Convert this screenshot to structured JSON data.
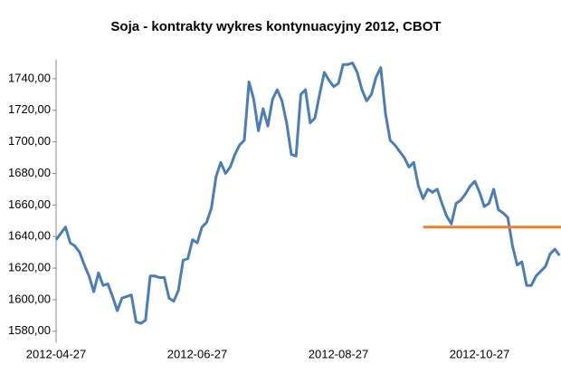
{
  "chart_data": {
    "type": "line",
    "title": "Soja - kontrakty wykres kontynuacyjny 2012, CBOT",
    "categories": [
      "2012-04-27",
      null,
      null,
      null,
      null,
      null,
      null,
      null,
      null,
      null,
      null,
      null,
      null,
      null,
      null,
      null,
      null,
      null,
      null,
      null,
      null,
      null,
      null,
      null,
      null,
      null,
      null,
      null,
      null,
      null,
      "2012-06-27",
      null,
      null,
      null,
      null,
      null,
      null,
      null,
      null,
      null,
      null,
      null,
      null,
      null,
      null,
      null,
      null,
      null,
      null,
      null,
      null,
      null,
      null,
      null,
      null,
      null,
      null,
      null,
      null,
      null,
      "2012-08-27",
      null,
      null,
      null,
      null,
      null,
      null,
      null,
      null,
      null,
      null,
      null,
      null,
      null,
      null,
      null,
      null,
      null,
      null,
      null,
      null,
      null,
      null,
      null,
      null,
      null,
      null,
      null,
      null,
      null,
      "2012-10-27",
      null,
      null,
      null,
      null,
      null,
      null,
      null,
      null,
      null,
      null,
      null,
      null,
      null,
      null,
      null,
      null,
      null
    ],
    "series": [
      {
        "color": "#4a7ebb",
        "values": [
          1638,
          1642,
          1646,
          1636,
          1634,
          1630,
          1622,
          1615,
          1605,
          1617,
          1609,
          1610,
          1602,
          1593,
          1601,
          1602,
          1603,
          1586,
          1585,
          1587,
          1615,
          1615,
          1614,
          1614,
          1601,
          1599,
          1606,
          1625,
          1626,
          1638,
          1636,
          1646,
          1649,
          1658,
          1678,
          1687,
          1680,
          1684,
          1692,
          1698,
          1701,
          1738,
          1727,
          1707,
          1721,
          1710,
          1727,
          1733,
          1726,
          1712,
          1692,
          1691,
          1730,
          1733,
          1712,
          1715,
          1730,
          1744,
          1739,
          1735,
          1737,
          1749,
          1749,
          1750,
          1744,
          1733,
          1726,
          1730,
          1741,
          1747,
          1718,
          1701,
          1698,
          1694,
          1690,
          1684,
          1687,
          1672,
          1664,
          1670,
          1668,
          1670,
          1661,
          1653,
          1648,
          1661,
          1663,
          1667,
          1672,
          1675,
          1668,
          1659,
          1661,
          1670,
          1657,
          1655,
          1652,
          1634,
          1622,
          1624,
          1609,
          1609,
          1615,
          1618,
          1621,
          1629,
          1632,
          1628
        ]
      }
    ],
    "reference_line": {
      "value": 1646,
      "start_index": 78,
      "color": "#f07f2a"
    },
    "ylim": [
      1573,
      1752
    ],
    "yticks": [
      {
        "value": 1580,
        "label": "1580,00"
      },
      {
        "value": 1600,
        "label": "1600,00"
      },
      {
        "value": 1620,
        "label": "1620,00"
      },
      {
        "value": 1640,
        "label": "1640,00"
      },
      {
        "value": 1660,
        "label": "1660,00"
      },
      {
        "value": 1680,
        "label": "1680,00"
      },
      {
        "value": 1700,
        "label": "1700,00"
      },
      {
        "value": 1720,
        "label": "1720,00"
      },
      {
        "value": 1740,
        "label": "1740,00"
      }
    ],
    "grid": false
  }
}
